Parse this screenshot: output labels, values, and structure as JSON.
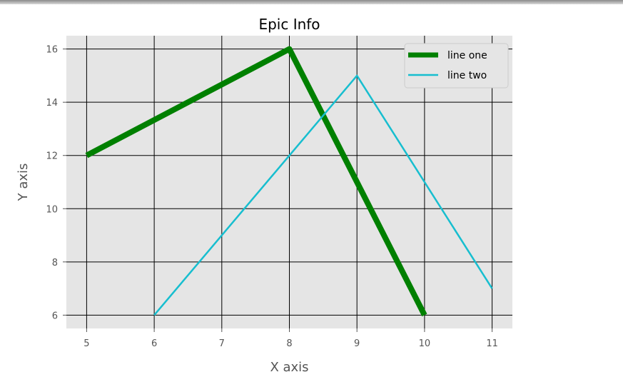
{
  "chart_data": {
    "type": "line",
    "title": "Epic Info",
    "xlabel": "X axis",
    "ylabel": "Y axis",
    "xlim": [
      4.7,
      11.3
    ],
    "ylim": [
      5.5,
      16.5
    ],
    "xticks": [
      5,
      6,
      7,
      8,
      9,
      10,
      11
    ],
    "yticks": [
      6,
      8,
      10,
      12,
      14,
      16
    ],
    "grid": true,
    "legend_position": "top-right",
    "colors": {
      "background": "#e5e5e5",
      "grid": "#000000",
      "text": "#555555"
    },
    "series": [
      {
        "name": "line one",
        "color": "#008000",
        "x": [
          5,
          8,
          10
        ],
        "y": [
          12,
          16,
          6
        ]
      },
      {
        "name": "line two",
        "color": "#17becf",
        "x": [
          6,
          9,
          11
        ],
        "y": [
          6,
          15,
          7
        ]
      }
    ]
  }
}
